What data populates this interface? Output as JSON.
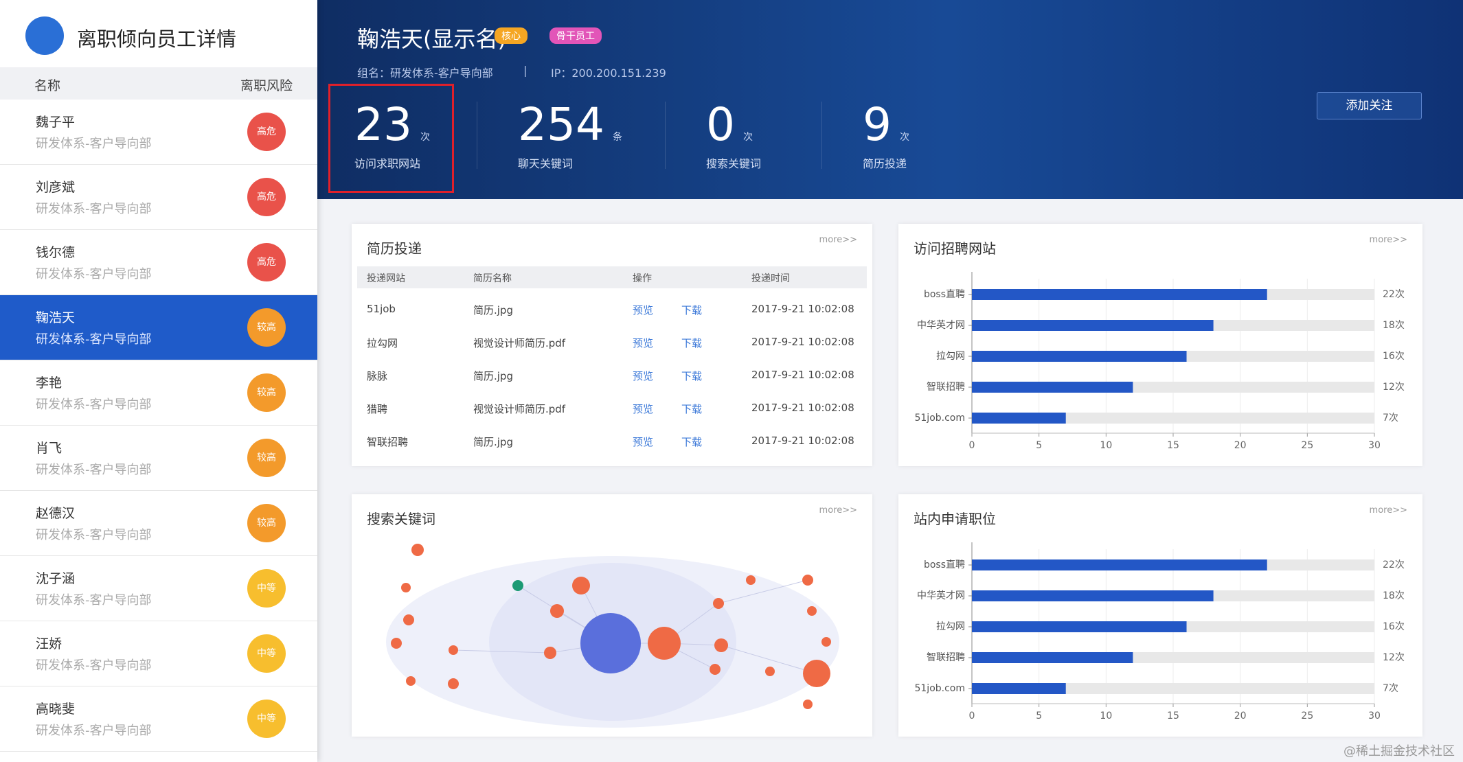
{
  "sidebar": {
    "title": "离职倾向员工详情",
    "columns": [
      "名称",
      "离职风险"
    ],
    "selected_index": 3,
    "employees": [
      {
        "name": "魏子平",
        "dept": "研发体系-客户导向部",
        "risk": "高危",
        "color": "#e9524a"
      },
      {
        "name": "刘彦斌",
        "dept": "研发体系-客户导向部",
        "risk": "高危",
        "color": "#e9524a"
      },
      {
        "name": "钱尔德",
        "dept": "研发体系-客户导向部",
        "risk": "高危",
        "color": "#e9524a"
      },
      {
        "name": "鞠浩天",
        "dept": "研发体系-客户导向部",
        "risk": "较高",
        "color": "#f39a2b"
      },
      {
        "name": "李艳",
        "dept": "研发体系-客户导向部",
        "risk": "较高",
        "color": "#f39a2b"
      },
      {
        "name": "肖飞",
        "dept": "研发体系-客户导向部",
        "risk": "较高",
        "color": "#f39a2b"
      },
      {
        "name": "赵德汉",
        "dept": "研发体系-客户导向部",
        "risk": "较高",
        "color": "#f39a2b"
      },
      {
        "name": "沈子涵",
        "dept": "研发体系-客户导向部",
        "risk": "中等",
        "color": "#f7be2e"
      },
      {
        "name": "汪娇",
        "dept": "研发体系-客户导向部",
        "risk": "中等",
        "color": "#f7be2e"
      },
      {
        "name": "高晓斐",
        "dept": "研发体系-客户导向部",
        "risk": "中等",
        "color": "#f7be2e"
      }
    ]
  },
  "header": {
    "name": "鞠浩天(显示名)",
    "tags": [
      {
        "text": "核心",
        "color": "#f5a623"
      },
      {
        "text": "骨干员工",
        "color": "#e255b8"
      }
    ],
    "group": "组名：研发体系-客户导向部",
    "separator": "|",
    "ip": "IP：200.200.151.239",
    "button": "添加关注"
  },
  "stats": [
    {
      "value": 23,
      "unit": "次",
      "label": "访问求职网站",
      "highlighted": true
    },
    {
      "value": 254,
      "unit": "条",
      "label": "聊天关键词",
      "highlighted": false
    },
    {
      "value": 0,
      "unit": "次",
      "label": "搜索关键词",
      "highlighted": false
    },
    {
      "value": 9,
      "unit": "次",
      "label": "简历投递",
      "highlighted": false
    }
  ],
  "resume_table": {
    "title": "简历投递",
    "more": "more>>",
    "columns": [
      "投递网站",
      "简历名称",
      "操作",
      "投递时间"
    ],
    "rows": [
      [
        "51job",
        "简历.jpg",
        "预览",
        "下载",
        "2017-9-21 10:02:08"
      ],
      [
        "拉勾网",
        "视觉设计师简历.pdf",
        "预览",
        "下载",
        "2017-9-21 10:02:08"
      ],
      [
        "脉脉",
        "简历.jpg",
        "预览",
        "下载",
        "2017-9-21 10:02:08"
      ],
      [
        "猎聘",
        "视觉设计师简历.pdf",
        "预览",
        "下载",
        "2017-9-21 10:02:08"
      ],
      [
        "智联招聘",
        "简历.jpg",
        "预览",
        "下载",
        "2017-9-21 10:02:08"
      ]
    ]
  },
  "keyword_panel": {
    "title": "搜索关键词",
    "more": "more>>"
  },
  "chart_data": [
    {
      "type": "bar",
      "horizontal": true,
      "title": "访问招聘网站",
      "more": "more>>",
      "categories": [
        "boss直聘",
        "中华英才网",
        "拉勾网",
        "智联招聘",
        "51job.com"
      ],
      "values": [
        22,
        18,
        16,
        12,
        7
      ],
      "value_labels": [
        "22次",
        "18次",
        "16次",
        "12次",
        "7次"
      ],
      "color": "#2357c6",
      "xlim": [
        0,
        30
      ],
      "xticks": [
        0,
        5,
        10,
        15,
        20,
        25,
        30
      ],
      "grid": true
    },
    {
      "type": "bar",
      "horizontal": true,
      "title": "站内申请职位",
      "more": "more>>",
      "categories": [
        "boss直聘",
        "中华英才网",
        "拉勾网",
        "智联招聘",
        "51job.com"
      ],
      "values": [
        22,
        18,
        16,
        12,
        7
      ],
      "value_labels": [
        "22次",
        "18次",
        "16次",
        "12次",
        "7次"
      ],
      "color": "#2357c6",
      "xlim": [
        0,
        30
      ],
      "xticks": [
        0,
        5,
        10,
        15,
        20,
        25,
        30
      ],
      "grid": true
    }
  ],
  "watermark": "@稀土掘金技术社区"
}
